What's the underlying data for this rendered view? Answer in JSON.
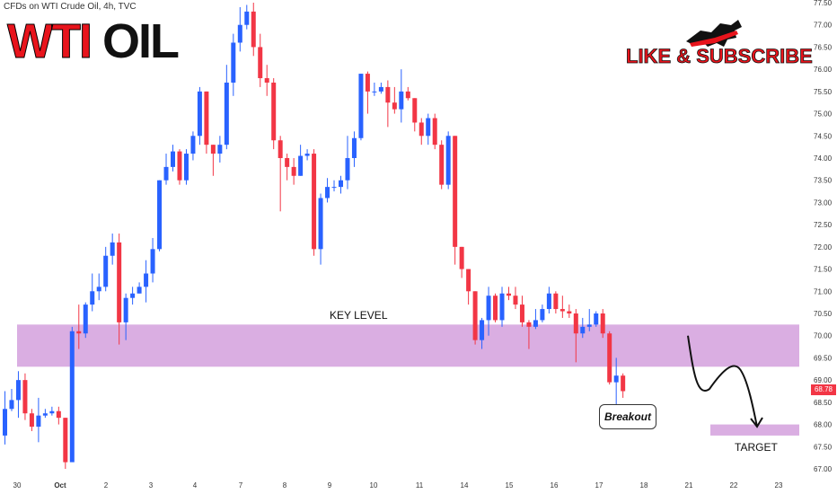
{
  "header": "CFDs on WTI Crude Oil, 4h, TVC",
  "title": {
    "part1": "WTI",
    "part2": "OIL"
  },
  "cta": "LIKE & SUBSCRIBE",
  "annotations": {
    "key_level": "KEY LEVEL",
    "target": "TARGET",
    "breakout": "Breakout"
  },
  "last_price": "68.78",
  "colors": {
    "up": "#2962ff",
    "down": "#f23645",
    "zone": "#ce93d8",
    "brand_red": "#e8141c"
  },
  "chart_data": {
    "type": "candlestick",
    "symbol": "WTI Crude Oil",
    "timeframe": "4h",
    "ylim": [
      67.0,
      77.5
    ],
    "y_ticks": [
      "67.00",
      "67.50",
      "68.00",
      "68.50",
      "69.00",
      "69.50",
      "70.00",
      "70.50",
      "71.00",
      "71.50",
      "72.00",
      "72.50",
      "73.00",
      "73.50",
      "74.00",
      "74.50",
      "75.00",
      "75.50",
      "76.00",
      "76.50",
      "77.00",
      "77.50"
    ],
    "x_ticks": [
      "30",
      "Oct",
      "2",
      "3",
      "4",
      "7",
      "8",
      "9",
      "10",
      "11",
      "14",
      "15",
      "16",
      "17",
      "18",
      "21",
      "22",
      "23"
    ],
    "key_level_zone": [
      69.3,
      70.25
    ],
    "target_zone": [
      67.75,
      68.0
    ],
    "candles": [
      [
        67.75,
        68.35,
        67.55,
        68.75
      ],
      [
        68.35,
        68.55,
        68.3,
        68.8
      ],
      [
        68.55,
        69.0,
        68.15,
        69.2
      ],
      [
        69.0,
        68.25,
        68.1,
        69.15
      ],
      [
        68.25,
        67.95,
        67.85,
        68.35
      ],
      [
        67.95,
        68.2,
        67.6,
        68.6
      ],
      [
        68.2,
        68.25,
        68.15,
        68.35
      ],
      [
        68.25,
        68.3,
        68.2,
        68.4
      ],
      [
        68.3,
        68.15,
        68.0,
        68.4
      ],
      [
        68.15,
        67.15,
        67.0,
        68.15
      ],
      [
        67.15,
        70.1,
        67.2,
        70.2
      ],
      [
        70.1,
        70.05,
        69.7,
        70.7
      ],
      [
        70.05,
        70.7,
        69.95,
        70.75
      ],
      [
        70.7,
        71.0,
        70.55,
        71.4
      ],
      [
        71.0,
        71.1,
        70.8,
        71.4
      ],
      [
        71.1,
        71.8,
        71.0,
        72.0
      ],
      [
        71.8,
        72.1,
        71.6,
        72.3
      ],
      [
        72.1,
        70.3,
        69.8,
        72.3
      ],
      [
        70.3,
        70.85,
        69.9,
        70.95
      ],
      [
        70.85,
        70.95,
        70.7,
        71.1
      ],
      [
        70.95,
        71.1,
        70.95,
        71.2
      ],
      [
        71.1,
        71.4,
        70.75,
        71.7
      ],
      [
        71.4,
        71.95,
        71.2,
        72.2
      ],
      [
        71.95,
        73.5,
        71.9,
        73.5
      ],
      [
        73.5,
        73.8,
        73.4,
        74.1
      ],
      [
        73.8,
        74.15,
        73.7,
        74.3
      ],
      [
        74.15,
        73.5,
        73.4,
        74.2
      ],
      [
        73.5,
        74.1,
        73.4,
        74.2
      ],
      [
        74.1,
        74.5,
        73.95,
        74.6
      ],
      [
        74.5,
        75.5,
        74.3,
        75.6
      ],
      [
        75.5,
        74.3,
        74.1,
        75.5
      ],
      [
        74.3,
        74.1,
        73.6,
        74.3
      ],
      [
        74.1,
        74.3,
        73.9,
        74.5
      ],
      [
        74.3,
        75.7,
        74.2,
        76.1
      ],
      [
        75.7,
        76.6,
        75.4,
        76.8
      ],
      [
        76.6,
        77.0,
        76.4,
        77.4
      ],
      [
        77.0,
        77.3,
        76.9,
        77.45
      ],
      [
        77.3,
        76.5,
        76.3,
        77.5
      ],
      [
        76.5,
        75.8,
        75.6,
        76.8
      ],
      [
        75.8,
        75.7,
        75.4,
        76.1
      ],
      [
        75.7,
        74.4,
        74.2,
        75.8
      ],
      [
        74.4,
        74.0,
        72.8,
        74.5
      ],
      [
        74.0,
        73.8,
        73.5,
        74.1
      ],
      [
        73.8,
        73.6,
        73.4,
        74.0
      ],
      [
        73.6,
        74.05,
        73.6,
        74.3
      ],
      [
        74.05,
        74.1,
        73.95,
        74.2
      ],
      [
        74.1,
        71.95,
        71.8,
        74.2
      ],
      [
        71.95,
        73.1,
        71.6,
        73.2
      ],
      [
        73.1,
        73.35,
        73.0,
        73.55
      ],
      [
        73.35,
        73.35,
        73.25,
        73.5
      ],
      [
        73.35,
        73.5,
        73.2,
        73.6
      ],
      [
        73.5,
        74.0,
        73.3,
        74.5
      ],
      [
        74.0,
        74.45,
        73.8,
        74.6
      ],
      [
        74.45,
        75.9,
        74.4,
        75.9
      ],
      [
        75.9,
        75.5,
        75.0,
        75.95
      ],
      [
        75.5,
        75.5,
        75.4,
        75.7
      ],
      [
        75.5,
        75.6,
        75.45,
        75.7
      ],
      [
        75.6,
        75.25,
        74.7,
        75.75
      ],
      [
        75.25,
        75.1,
        75.0,
        75.6
      ],
      [
        75.1,
        75.5,
        74.8,
        76.0
      ],
      [
        75.5,
        75.35,
        75.3,
        75.6
      ],
      [
        75.35,
        74.8,
        74.6,
        75.35
      ],
      [
        74.8,
        74.5,
        74.3,
        74.9
      ],
      [
        74.5,
        74.9,
        74.3,
        75.0
      ],
      [
        74.9,
        74.3,
        74.2,
        75.0
      ],
      [
        74.3,
        73.4,
        73.3,
        74.4
      ],
      [
        73.4,
        74.5,
        73.3,
        74.6
      ],
      [
        74.5,
        72.0,
        71.6,
        74.5
      ],
      [
        72.0,
        71.5,
        71.3,
        72.0
      ],
      [
        71.5,
        71.0,
        70.7,
        71.5
      ],
      [
        71.0,
        69.9,
        69.8,
        71.0
      ],
      [
        69.9,
        70.35,
        69.7,
        70.4
      ],
      [
        70.35,
        70.9,
        70.0,
        71.1
      ],
      [
        70.9,
        70.35,
        70.3,
        70.95
      ],
      [
        70.35,
        70.95,
        70.2,
        71.1
      ],
      [
        70.95,
        70.9,
        70.8,
        71.1
      ],
      [
        70.9,
        70.7,
        70.6,
        71.1
      ],
      [
        70.7,
        70.3,
        70.2,
        70.9
      ],
      [
        70.3,
        70.2,
        69.7,
        70.35
      ],
      [
        70.2,
        70.35,
        70.15,
        70.6
      ],
      [
        70.35,
        70.6,
        70.3,
        70.7
      ],
      [
        70.6,
        70.95,
        70.5,
        71.1
      ],
      [
        70.95,
        70.6,
        70.5,
        71.0
      ],
      [
        70.6,
        70.55,
        70.4,
        70.9
      ],
      [
        70.55,
        70.5,
        70.4,
        70.7
      ],
      [
        70.5,
        70.05,
        69.4,
        70.6
      ],
      [
        70.05,
        70.2,
        69.95,
        70.4
      ],
      [
        70.2,
        70.25,
        70.1,
        70.6
      ],
      [
        70.25,
        70.5,
        70.2,
        70.55
      ],
      [
        70.5,
        70.05,
        69.95,
        70.6
      ],
      [
        70.05,
        68.95,
        68.9,
        70.1
      ],
      [
        68.95,
        69.1,
        68.15,
        69.5
      ],
      [
        69.1,
        68.75,
        68.6,
        69.15
      ]
    ],
    "projection": [
      70.0,
      68.8,
      69.3,
      67.95
    ]
  }
}
